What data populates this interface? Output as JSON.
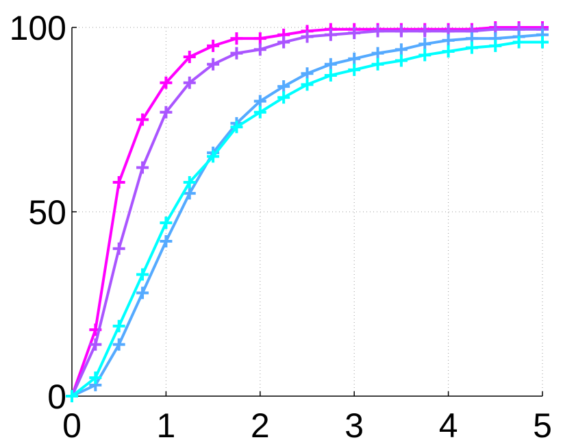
{
  "chart_data": {
    "type": "line",
    "title": "",
    "xlabel": "",
    "ylabel": "",
    "xlim": [
      0,
      5
    ],
    "ylim": [
      0,
      100
    ],
    "x_ticks": [
      0,
      1,
      2,
      3,
      4,
      5
    ],
    "y_ticks": [
      0,
      50,
      100
    ],
    "x_tick_labels": [
      "0",
      "1",
      "2",
      "3",
      "4",
      "5"
    ],
    "y_tick_labels": [
      "0",
      "50",
      "100"
    ],
    "grid": true,
    "marker": "plus",
    "x": [
      0,
      0.25,
      0.5,
      0.75,
      1.0,
      1.25,
      1.5,
      1.75,
      2.0,
      2.25,
      2.5,
      2.75,
      3.0,
      3.25,
      3.5,
      3.75,
      4.0,
      4.25,
      4.5,
      4.75,
      5.0
    ],
    "series": [
      {
        "color": "#ff00ff",
        "values": [
          0,
          18,
          58,
          75,
          85,
          92,
          95,
          97,
          97,
          98,
          99,
          99.5,
          99.5,
          99.5,
          99.5,
          99.5,
          99.5,
          99.5,
          100,
          100,
          100
        ]
      },
      {
        "color": "#aa55ff",
        "values": [
          0,
          14,
          40,
          62,
          77,
          85,
          90,
          93,
          94,
          96,
          97.5,
          98,
          98.5,
          99,
          99,
          99,
          99,
          99,
          99.5,
          99.5,
          99.5
        ]
      },
      {
        "color": "#55aaff",
        "values": [
          0,
          3,
          14,
          28,
          42,
          55,
          66,
          74,
          80,
          84,
          87.5,
          90,
          91.5,
          93,
          94,
          95.5,
          96.5,
          97,
          97,
          97.5,
          98
        ]
      },
      {
        "color": "#00ffff",
        "values": [
          0,
          5,
          19,
          33,
          47,
          58,
          65,
          73,
          77,
          81,
          84.5,
          87,
          88.5,
          90,
          91,
          92.5,
          93.5,
          94.5,
          95,
          96,
          96
        ]
      }
    ]
  }
}
